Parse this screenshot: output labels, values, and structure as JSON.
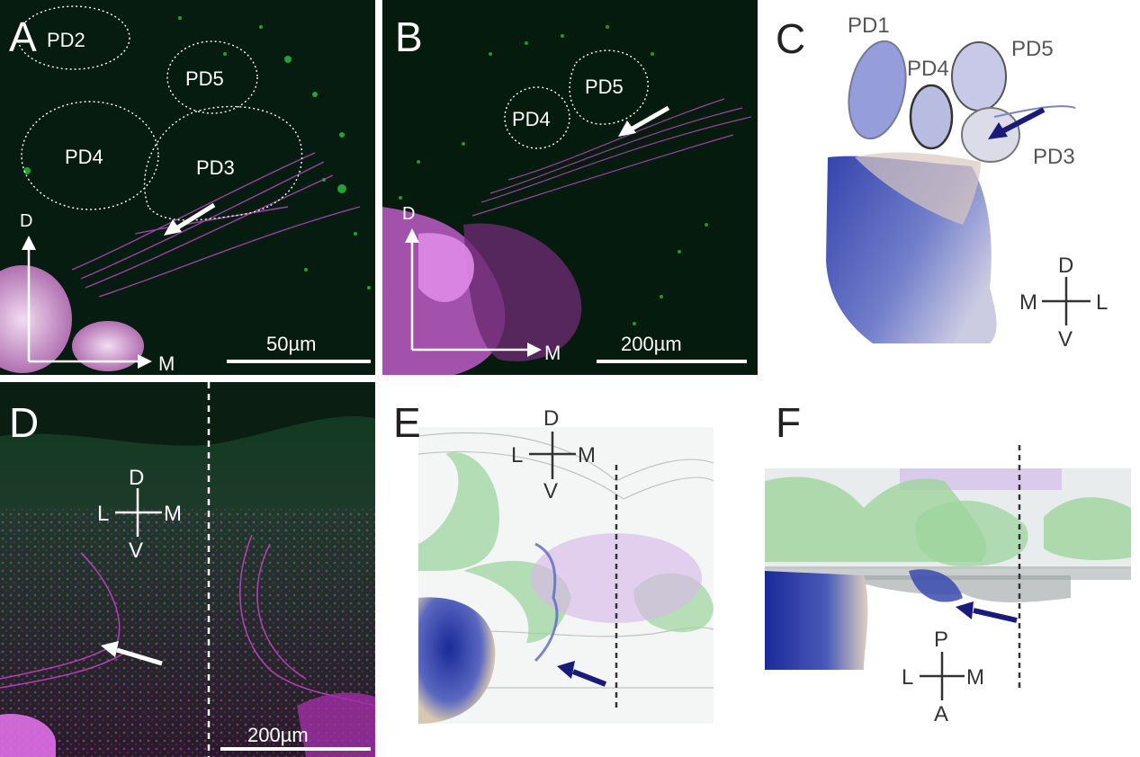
{
  "panels": {
    "A": {
      "label": "A",
      "regions": [
        "PD2",
        "PD5",
        "PD4",
        "PD3"
      ],
      "axis_vertical": "D",
      "axis_horizontal": "M",
      "scale": "50µm",
      "colors": {
        "background": "#061a0e",
        "fibers": "#b04cb8",
        "cells": "#2ecc40"
      }
    },
    "B": {
      "label": "B",
      "regions": [
        "PD4",
        "PD5"
      ],
      "axis_vertical": "D",
      "axis_horizontal": "M",
      "scale": "200µm",
      "colors": {
        "background": "#041a0c",
        "fibers": "#c060c8",
        "cells": "#2ecc40"
      }
    },
    "C": {
      "label": "C",
      "regions": [
        "PD1",
        "PD4",
        "PD5",
        "PD3"
      ],
      "compass": {
        "top": "D",
        "bottom": "V",
        "left": "M",
        "right": "L"
      },
      "colors": {
        "tissue": "#3a4fb8",
        "arrow": "#1a1a7a"
      }
    },
    "D": {
      "label": "D",
      "compass": {
        "top": "D",
        "bottom": "V",
        "left": "L",
        "right": "M"
      },
      "scale": "200µm",
      "colors": {
        "background": "#0c2214",
        "fibers": "#c040c0"
      }
    },
    "E": {
      "label": "E",
      "compass": {
        "top": "D",
        "bottom": "V",
        "left": "L",
        "right": "M"
      },
      "colors": {
        "green": "#7cc47c",
        "violet": "#d8b8e8",
        "blue": "#2a3aa8",
        "arrow": "#1a1a7a"
      }
    },
    "F": {
      "label": "F",
      "compass": {
        "top": "P",
        "bottom": "A",
        "left": "L",
        "right": "M"
      },
      "colors": {
        "green": "#7cc47c",
        "violet": "#d8c8ec",
        "blue": "#2a3aa8",
        "arrow": "#1a1a7a"
      }
    }
  }
}
